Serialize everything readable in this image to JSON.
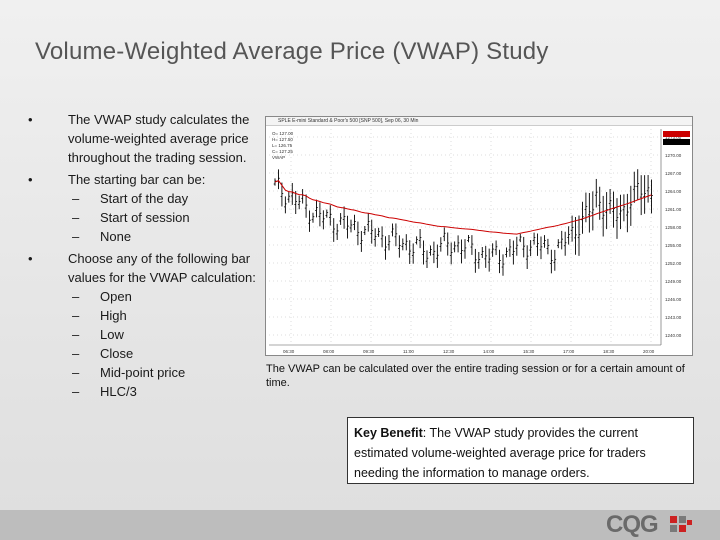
{
  "slide": {
    "title": "Volume-Weighted Average Price (VWAP) Study",
    "bullets": [
      {
        "text": "The VWAP study calculates the volume-weighted average price throughout the trading session.",
        "subs": []
      },
      {
        "text": "The starting bar can be:",
        "subs": [
          "Start of the day",
          "Start of session",
          "None"
        ]
      },
      {
        "text": "Choose any of the following bar values for the VWAP calculation:",
        "subs": [
          "Open",
          "High",
          "Low",
          "Close",
          "Mid-point price",
          "HLC/3"
        ]
      }
    ],
    "bullet_glyph": "•",
    "dash_glyph": "–",
    "caption": "The VWAP can be calculated over the entire trading session or for a certain amount of time.",
    "benefit_label": "Key Benefit",
    "benefit_text": ": The VWAP study provides the current estimated volume-weighted average price for traders needing the information to manage orders.",
    "logo_text": "CQG"
  },
  "chart": {
    "titlebar": "SPLE  E-mini Standard & Poor's 500 [SNP 500], Sep 06, 30 Min",
    "legend_lines": [
      "O= 127.00",
      "H= 127.50",
      "L= 126.75",
      "C= 127.25",
      "VWAP"
    ],
    "y_ticks": [
      "1273.00",
      "1270.00",
      "1267.00",
      "1264.00",
      "1261.00",
      "1258.00",
      "1255.00",
      "1252.00",
      "1249.00",
      "1246.00",
      "1243.00",
      "1240.00"
    ],
    "x_ticks": [
      "06:30",
      "08:00",
      "09:30",
      "11:00",
      "12:30",
      "14:00",
      "15:30",
      "17:00",
      "18:30",
      "20:00"
    ],
    "colors": {
      "bars": "#000000",
      "vwap": "#cc0000",
      "highlight": "#cc0000"
    }
  }
}
